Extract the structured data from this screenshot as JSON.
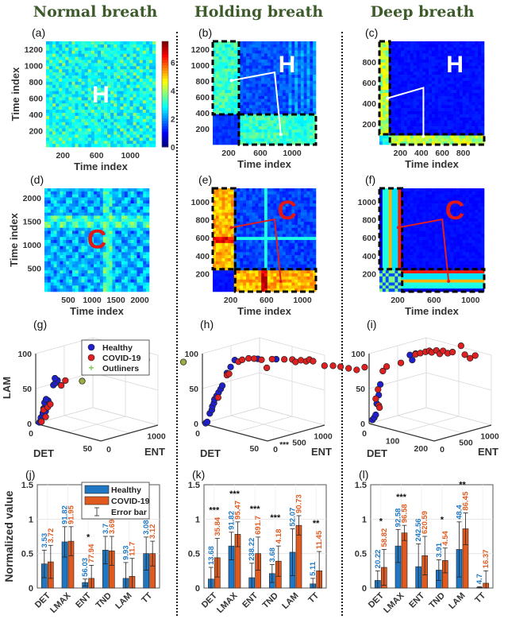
{
  "columns": [
    {
      "title": "Normal breath"
    },
    {
      "title": "Holding breath"
    },
    {
      "title": "Deep breath"
    }
  ],
  "chart_data": [
    {
      "panel": "(a)",
      "type": "heatmap",
      "subject": "H",
      "xlabel": "Time index",
      "ylabel": "Time index",
      "xticks": [
        "200",
        "600",
        "1000"
      ],
      "yticks": [
        "200",
        "400",
        "600",
        "800",
        "1000",
        "1200"
      ],
      "xlim": [
        0,
        1300
      ],
      "ylim": [
        0,
        1300
      ],
      "colorbar": {
        "ticks": [
          "0",
          "2",
          "4",
          "6"
        ],
        "range": [
          0,
          7.5
        ]
      },
      "highlighted_regions": []
    },
    {
      "panel": "(b)",
      "type": "heatmap",
      "subject": "H",
      "xlabel": "Time index",
      "ylabel": "",
      "xticks": [
        "200",
        "600",
        "1000"
      ],
      "yticks": [
        "200",
        "400",
        "600",
        "800",
        "1000",
        "1200"
      ],
      "xlim": [
        0,
        1300
      ],
      "ylim": [
        0,
        1300
      ],
      "highlighted_regions": [
        {
          "x": [
            0,
            330
          ],
          "y": [
            380,
            1300
          ]
        },
        {
          "x": [
            330,
            1300
          ],
          "y": [
            0,
            380
          ]
        }
      ]
    },
    {
      "panel": "(c)",
      "type": "heatmap",
      "subject": "H",
      "xlabel": "Time index",
      "ylabel": "",
      "xticks": [
        "200",
        "400",
        "600",
        "800"
      ],
      "yticks": [
        "200",
        "400",
        "600",
        "800"
      ],
      "xlim": [
        0,
        1000
      ],
      "ylim": [
        0,
        1000
      ],
      "highlighted_regions": [
        {
          "x": [
            0,
            100
          ],
          "y": [
            100,
            1000
          ]
        },
        {
          "x": [
            100,
            1000
          ],
          "y": [
            0,
            100
          ]
        }
      ]
    },
    {
      "panel": "(d)",
      "type": "heatmap",
      "subject": "C",
      "xlabel": "Time index",
      "ylabel": "Time index",
      "xticks": [
        "500",
        "1000",
        "1500",
        "2000"
      ],
      "yticks": [
        "500",
        "1000",
        "1500",
        "2000"
      ],
      "xlim": [
        0,
        2200
      ],
      "ylim": [
        0,
        2200
      ],
      "highlighted_regions": []
    },
    {
      "panel": "(e)",
      "type": "heatmap",
      "subject": "C",
      "xlabel": "Time index",
      "ylabel": "",
      "xticks": [
        "200",
        "600",
        "1000"
      ],
      "yticks": [
        "200",
        "400",
        "600",
        "800",
        "1000"
      ],
      "xlim": [
        0,
        1150
      ],
      "ylim": [
        0,
        1150
      ],
      "highlighted_regions": [
        {
          "x": [
            0,
            250
          ],
          "y": [
            250,
            1150
          ]
        },
        {
          "x": [
            250,
            1150
          ],
          "y": [
            0,
            250
          ]
        }
      ]
    },
    {
      "panel": "(f)",
      "type": "heatmap",
      "subject": "C",
      "xlabel": "Time index",
      "ylabel": "",
      "xticks": [
        "200",
        "600",
        "1000"
      ],
      "yticks": [
        "200",
        "400",
        "600",
        "800",
        "1000"
      ],
      "xlim": [
        0,
        1150
      ],
      "ylim": [
        0,
        1150
      ],
      "highlighted_regions": [
        {
          "x": [
            0,
            250
          ],
          "y": [
            250,
            1150
          ]
        },
        {
          "x": [
            250,
            1150
          ],
          "y": [
            0,
            250
          ]
        }
      ]
    },
    {
      "panel": "(g)",
      "type": "scatter",
      "projection": "3d",
      "xlabel": "DET",
      "ylabel": "ENT",
      "zlabel": "LAM",
      "xticks": [
        "0",
        "50"
      ],
      "yticks": [
        "0",
        "1000"
      ],
      "zticks": [
        "0",
        "50",
        "100"
      ],
      "legend": {
        "placement": "right",
        "entries": [
          "Healthy",
          "COVID-19",
          "Outliners"
        ]
      },
      "series": [
        {
          "name": "Healthy",
          "color": "#1f1fd0",
          "points": [
            [
              2,
              30,
              2
            ],
            [
              3,
              40,
              5
            ],
            [
              2,
              60,
              8
            ],
            [
              4,
              50,
              12
            ],
            [
              3,
              80,
              15
            ],
            [
              5,
              90,
              18
            ],
            [
              4,
              70,
              22
            ],
            [
              6,
              100,
              25
            ],
            [
              5,
              110,
              28
            ],
            [
              4,
              90,
              30
            ],
            [
              6,
              120,
              33
            ],
            [
              5,
              100,
              35
            ],
            [
              8,
              180,
              55
            ],
            [
              9,
              200,
              58
            ],
            [
              10,
              220,
              62
            ],
            [
              9,
              190,
              65
            ]
          ]
        },
        {
          "name": "COVID-19",
          "color": "#e02020",
          "points": [
            [
              3,
              50,
              3
            ],
            [
              5,
              90,
              10
            ],
            [
              4,
              70,
              20
            ],
            [
              6,
              110,
              24
            ],
            [
              7,
              140,
              28
            ],
            [
              12,
              250,
              55
            ],
            [
              14,
              290,
              62
            ]
          ]
        },
        {
          "name": "Outliners",
          "color": "#7ec850",
          "points": [
            [
              20,
              500,
              60
            ],
            [
              60,
              900,
              100
            ],
            [
              80,
              1200,
              100
            ]
          ]
        }
      ]
    },
    {
      "panel": "(h)",
      "type": "scatter",
      "projection": "3d",
      "xlabel": "DET",
      "ylabel": "ENT",
      "zlabel": "LAM",
      "xticks": [
        "0",
        "50"
      ],
      "yticks": [
        "0",
        "500",
        "1000"
      ],
      "zticks": [
        "0",
        "50",
        "100"
      ],
      "annotation": "***",
      "series": [
        {
          "name": "Healthy",
          "color": "#1f1fd0",
          "points": [
            [
              2,
              20,
              1
            ],
            [
              3,
              30,
              3
            ],
            [
              4,
              60,
              15
            ],
            [
              5,
              80,
              20
            ],
            [
              5,
              90,
              25
            ],
            [
              6,
              100,
              30
            ],
            [
              6,
              110,
              35
            ],
            [
              7,
              130,
              40
            ],
            [
              8,
              150,
              45
            ],
            [
              9,
              170,
              50
            ],
            [
              10,
              180,
              55
            ],
            [
              12,
              230,
              73
            ],
            [
              14,
              260,
              82
            ],
            [
              16,
              300,
              92
            ],
            [
              30,
              450,
              97
            ],
            [
              40,
              600,
              98
            ]
          ]
        },
        {
          "name": "COVID-19",
          "color": "#e02020",
          "points": [
            [
              8,
              140,
              38
            ],
            [
              12,
              230,
              70
            ],
            [
              13,
              250,
              72
            ],
            [
              18,
              330,
              90
            ],
            [
              20,
              360,
              93
            ],
            [
              24,
              400,
              96
            ],
            [
              28,
              420,
              97
            ],
            [
              32,
              480,
              96
            ],
            [
              35,
              520,
              85
            ],
            [
              38,
              560,
              98
            ],
            [
              45,
              650,
              99
            ],
            [
              50,
              700,
              100
            ],
            [
              52,
              720,
              97
            ],
            [
              55,
              760,
              100
            ],
            [
              58,
              800,
              99
            ],
            [
              60,
              820,
              102
            ],
            [
              62,
              850,
              100
            ],
            [
              70,
              900,
              96
            ],
            [
              75,
              960,
              97
            ],
            [
              80,
              1000,
              97
            ],
            [
              85,
              1050,
              96
            ],
            [
              90,
              1100,
              95
            ],
            [
              95,
              1150,
              100
            ]
          ]
        }
      ]
    },
    {
      "panel": "(i)",
      "type": "scatter",
      "projection": "3d",
      "xlabel": "DET",
      "ylabel": "ENT",
      "zlabel": "LAM",
      "xticks": [
        "0",
        "100",
        "200"
      ],
      "yticks": [
        "0",
        "500",
        "1000"
      ],
      "zticks": [
        "0",
        "50",
        "100"
      ],
      "series": [
        {
          "name": "Healthy",
          "color": "#1f1fd0",
          "points": [
            [
              5,
              40,
              5
            ],
            [
              8,
              60,
              8
            ],
            [
              10,
              80,
              12
            ],
            [
              12,
              90,
              28
            ],
            [
              14,
              120,
              40
            ],
            [
              16,
              140,
              55
            ],
            [
              60,
              500,
              95
            ],
            [
              65,
              520,
              88
            ],
            [
              70,
              560,
              97
            ]
          ]
        },
        {
          "name": "COVID-19",
          "color": "#e02020",
          "points": [
            [
              10,
              80,
              35
            ],
            [
              13,
              110,
              48
            ],
            [
              14,
              120,
              25
            ],
            [
              15,
              130,
              22
            ],
            [
              20,
              170,
              74
            ],
            [
              25,
              220,
              80
            ],
            [
              45,
              400,
              84
            ],
            [
              70,
              560,
              96
            ],
            [
              80,
              600,
              98
            ],
            [
              90,
              650,
              100
            ],
            [
              95,
              700,
              101
            ],
            [
              100,
              720,
              99
            ],
            [
              110,
              760,
              102
            ],
            [
              115,
              800,
              97
            ],
            [
              120,
              840,
              101
            ],
            [
              130,
              880,
              98
            ],
            [
              140,
              920,
              100
            ],
            [
              160,
              980,
              110
            ],
            [
              170,
              1000,
              98
            ],
            [
              180,
              1050,
              93
            ],
            [
              190,
              1100,
              97
            ]
          ]
        }
      ]
    },
    {
      "panel": "(j)",
      "type": "bar",
      "ylabel": "Normalized value",
      "categories": [
        "DET",
        "LMAX",
        "ENT",
        "TND",
        "LAM",
        "TT"
      ],
      "ylim": [
        0,
        1.5
      ],
      "yticks": [
        "0",
        "0.5",
        "1",
        "1.5"
      ],
      "legend": {
        "placement": "top-right",
        "entries": [
          "Healthy",
          "COVID-19",
          "Error bar"
        ]
      },
      "series": [
        {
          "name": "Healthy",
          "color": "#1f77c4",
          "values": [
            0.35,
            0.67,
            0.08,
            0.55,
            0.14,
            0.5
          ],
          "errors": [
            0.2,
            0.22,
            0.05,
            0.2,
            0.23,
            0.24
          ],
          "labels": [
            "3.53",
            "91.82",
            "56.03",
            "3.7",
            "9.93",
            "3.08"
          ]
        },
        {
          "name": "COVID-19",
          "color": "#e05a1f",
          "values": [
            0.38,
            0.68,
            0.14,
            0.54,
            0.17,
            0.5
          ],
          "errors": [
            0.24,
            0.21,
            0.19,
            0.21,
            0.26,
            0.18
          ],
          "labels": [
            "3.72",
            "91.95",
            "77.94",
            "3.69",
            "11.7",
            "3.12"
          ]
        }
      ],
      "significance": [
        "",
        "",
        "*",
        "",
        "",
        ""
      ]
    },
    {
      "panel": "(k)",
      "type": "bar",
      "ylabel": "",
      "categories": [
        "DET",
        "LMAX",
        "ENT",
        "TND",
        "LAM",
        "TT"
      ],
      "ylim": [
        0,
        1.5
      ],
      "yticks": [
        "0",
        "0.5",
        "1",
        "1.5"
      ],
      "series": [
        {
          "name": "Healthy",
          "color": "#1f77c4",
          "values": [
            0.13,
            0.61,
            0.15,
            0.21,
            0.52,
            0.06
          ],
          "errors": [
            0.17,
            0.2,
            0.21,
            0.13,
            0.34,
            0.08
          ],
          "labels": [
            "13.68",
            "91.82",
            "238.22",
            "3.68",
            "52.07",
            "5.11"
          ]
        },
        {
          "name": "COVID-19",
          "color": "#e05a1f",
          "values": [
            0.44,
            0.78,
            0.5,
            0.39,
            0.91,
            0.25
          ],
          "errors": [
            0.28,
            0.18,
            0.24,
            0.22,
            0.14,
            0.28
          ],
          "labels": [
            "35.84",
            "95.47",
            "691.7",
            "4.18",
            "90.73",
            "11.45"
          ]
        }
      ],
      "significance": [
        "***",
        "***",
        "***",
        "***",
        "",
        "**"
      ]
    },
    {
      "panel": "(l)",
      "type": "bar",
      "ylabel": "",
      "categories": [
        "DET",
        "LMAX",
        "ENT",
        "TND",
        "LAM",
        "TT"
      ],
      "ylim": [
        0,
        1.5
      ],
      "yticks": [
        "0",
        "0.5",
        "1",
        "1.5"
      ],
      "series": [
        {
          "name": "Healthy",
          "color": "#1f77c4",
          "values": [
            0.11,
            0.61,
            0.31,
            0.26,
            0.56,
            0.01
          ],
          "errors": [
            0.14,
            0.24,
            0.33,
            0.15,
            0.4,
            0.01
          ],
          "labels": [
            "20.22",
            "92.58",
            "242.56",
            "3.91",
            "48.4",
            "4.7"
          ]
        },
        {
          "name": "COVID-19",
          "color": "#e05a1f",
          "values": [
            0.3,
            0.8,
            0.47,
            0.4,
            0.86,
            0.07
          ],
          "errors": [
            0.26,
            0.11,
            0.28,
            0.18,
            0.23,
            0.18
          ],
          "labels": [
            "58.82",
            "96.58",
            "620.59",
            "4.54",
            "86.45",
            "16.37"
          ]
        }
      ],
      "significance": [
        "*",
        "***",
        "",
        "*",
        "**",
        ""
      ]
    }
  ]
}
